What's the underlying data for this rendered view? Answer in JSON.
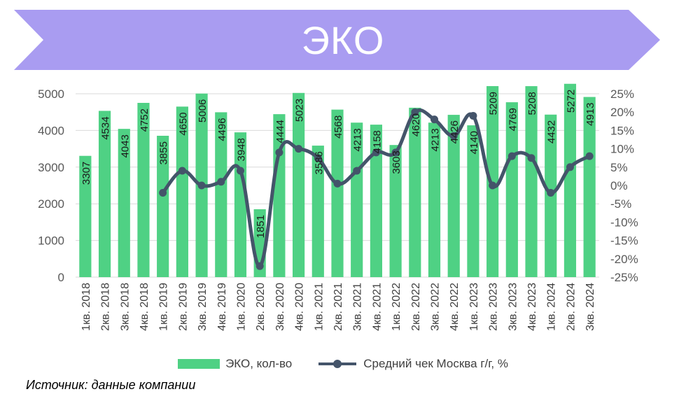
{
  "title": "ЭКО",
  "colors": {
    "banner": "#a99cf1",
    "bar": "#4fd184",
    "line": "#44546a",
    "grid": "#d9d9d9"
  },
  "legend": {
    "bar_label": "ЭКО, кол-во",
    "line_label": "Средний чек Москва г/г, %"
  },
  "source": "Источник: данные компании",
  "chart_data": {
    "type": "bar+line",
    "title": "ЭКО",
    "categories": [
      "1кв. 2018",
      "2кв. 2018",
      "3кв. 2018",
      "4кв. 2018",
      "1кв. 2019",
      "2кв. 2019",
      "3кв. 2019",
      "4кв. 2019",
      "1кв. 2020",
      "2кв. 2020",
      "3кв. 2020",
      "4кв. 2020",
      "1кв. 2021",
      "2кв. 2021",
      "3кв. 2021",
      "4кв. 2021",
      "1кв. 2022",
      "2кв. 2022",
      "3кв. 2022",
      "4кв. 2022",
      "1кв. 2023",
      "2кв. 2023",
      "3кв. 2023",
      "4кв. 2023",
      "1кв. 2024",
      "2кв. 2024",
      "3кв. 2024"
    ],
    "series": [
      {
        "name": "ЭКО, кол-во",
        "type": "bar",
        "axis": "left",
        "values": [
          3307,
          4534,
          4043,
          4752,
          3855,
          4650,
          5006,
          4496,
          3948,
          1851,
          4444,
          5023,
          3586,
          4568,
          4213,
          4158,
          3603,
          4620,
          4213,
          4426,
          4140,
          5209,
          4769,
          5208,
          4432,
          5272,
          4913
        ]
      },
      {
        "name": "Средний чек Москва г/г, %",
        "type": "line",
        "axis": "right",
        "values": [
          null,
          null,
          null,
          null,
          -2,
          4,
          0,
          1,
          4,
          -22,
          9,
          10,
          7.5,
          0.5,
          4,
          9,
          9,
          20,
          18,
          13.5,
          19,
          0,
          8,
          7.5,
          -2,
          5,
          8
        ]
      }
    ],
    "y_left": {
      "ylim": [
        0,
        5000
      ],
      "ticks": [
        "0",
        "1000",
        "2000",
        "3000",
        "4000",
        "5000"
      ]
    },
    "y_right": {
      "ylim": [
        -25,
        25
      ],
      "ticks": [
        "-25%",
        "-20%",
        "-15%",
        "-10%",
        "-5%",
        "0%",
        "5%",
        "10%",
        "15%",
        "20%",
        "25%"
      ]
    },
    "grid": true,
    "legend_position": "bottom"
  }
}
